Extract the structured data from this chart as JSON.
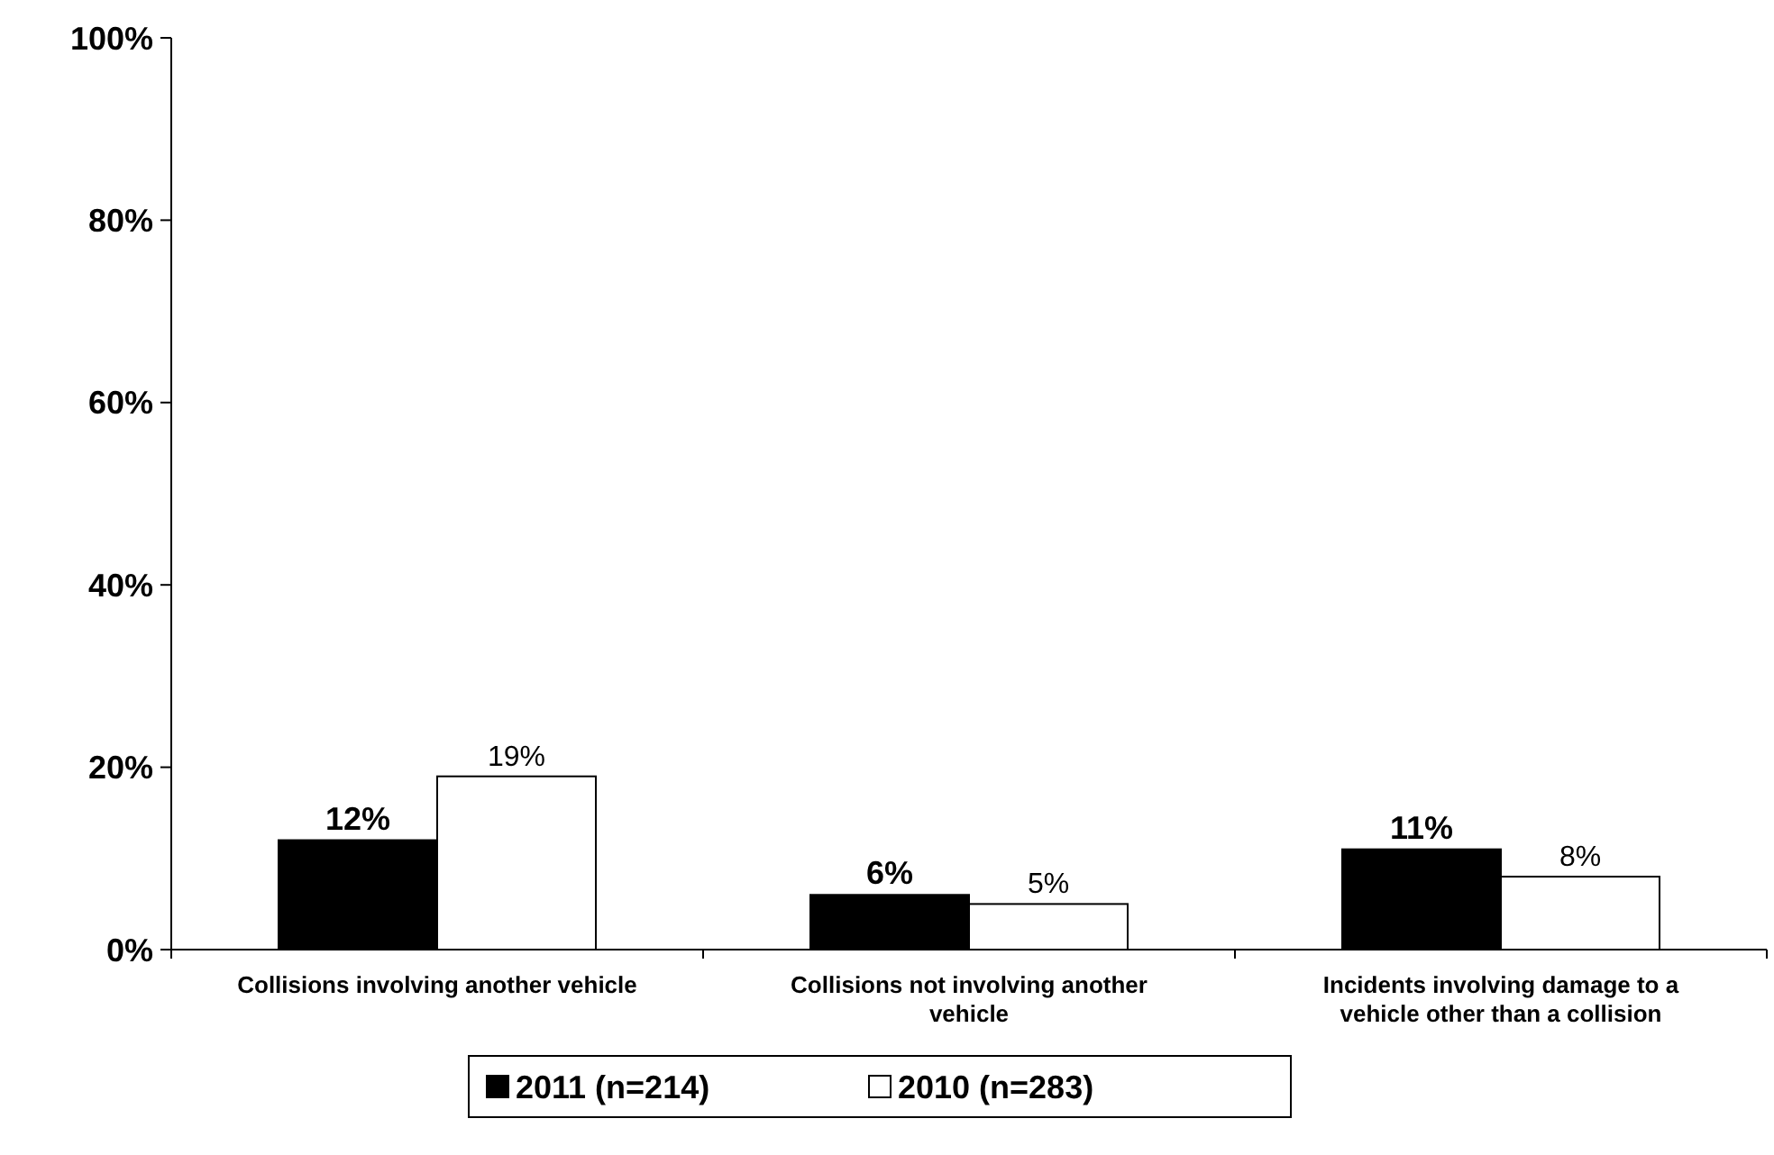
{
  "chart_data": {
    "type": "bar",
    "categories": [
      "Collisions involving another vehicle",
      "Collisions not involving another vehicle",
      "Incidents involving damage to a vehicle other than a collision"
    ],
    "series": [
      {
        "name": "2011 (n=214)",
        "color": "#000000",
        "values": [
          12,
          6,
          11
        ],
        "value_labels": [
          "12%",
          "6%",
          "11%"
        ]
      },
      {
        "name": "2010 (n=283)",
        "color": "#ffffff",
        "values": [
          19,
          5,
          8
        ],
        "value_labels": [
          "19%",
          "5%",
          "8%"
        ]
      }
    ],
    "ylim": [
      0,
      100
    ],
    "yticks": [
      {
        "value": 0,
        "label": "0%"
      },
      {
        "value": 20,
        "label": "20%"
      },
      {
        "value": 40,
        "label": "40%"
      },
      {
        "value": 60,
        "label": "60%"
      },
      {
        "value": 80,
        "label": "80%"
      },
      {
        "value": 100,
        "label": "100%"
      }
    ],
    "grid": false,
    "legend": "bottom"
  }
}
